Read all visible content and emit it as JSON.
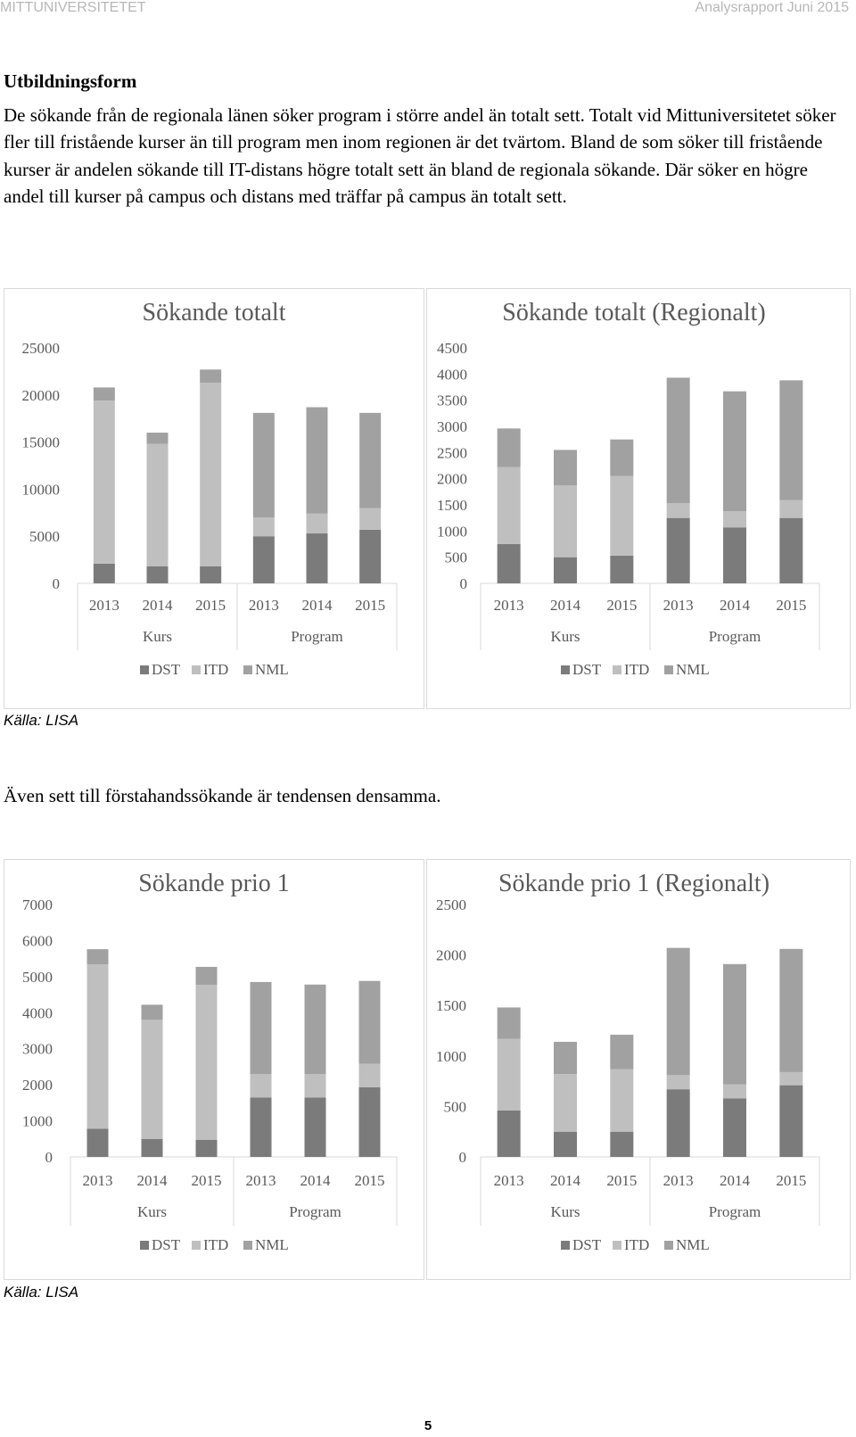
{
  "header": {
    "left": "MITTUNIVERSITETET",
    "right": "Analysrapport Juni 2015"
  },
  "section_heading": "Utbildningsform",
  "paragraph": "De sökande från de regionala länen söker program i större andel än totalt sett. Totalt vid Mittuniversitetet söker fler till fristående kurser än till program men inom regionen är det tvärtom. Bland de som söker till fristående kurser är andelen sökande till IT-distans högre totalt sett än bland de regionala sökande. Där söker en högre andel till kurser på campus och distans med träffar på campus än totalt sett.",
  "paragraph2": "Även sett till förstahandssökande är tendensen densamma.",
  "source1": "Källa: LISA",
  "source2": "Källa: LISA",
  "page_number": "5",
  "colors": {
    "DST": "#7b7b7b",
    "ITD": "#bfbfbf",
    "NML": "#a1a1a1",
    "grid": "#d9d9d9",
    "axis_text": "#595959"
  },
  "chart_data": [
    {
      "type": "bar",
      "stacked": true,
      "title": "Sökande totalt",
      "categories": [
        "2013",
        "2014",
        "2015",
        "2013",
        "2014",
        "2015"
      ],
      "groups": [
        {
          "label": "Kurs",
          "count": 3
        },
        {
          "label": "Program",
          "count": 3
        }
      ],
      "series": [
        {
          "name": "DST",
          "values": [
            2100,
            1800,
            1800,
            5000,
            5300,
            5700
          ]
        },
        {
          "name": "ITD",
          "values": [
            17300,
            13000,
            19500,
            2000,
            2100,
            2300
          ]
        },
        {
          "name": "NML",
          "values": [
            1400,
            1200,
            1400,
            11100,
            11300,
            10100
          ]
        }
      ],
      "yticks": [
        0,
        5000,
        10000,
        15000,
        20000,
        25000
      ],
      "ylim": [
        0,
        25000
      ],
      "grid": false,
      "legend": "bottom"
    },
    {
      "type": "bar",
      "stacked": true,
      "title": "Sökande totalt (Regionalt)",
      "categories": [
        "2013",
        "2014",
        "2015",
        "2013",
        "2014",
        "2015"
      ],
      "groups": [
        {
          "label": "Kurs",
          "count": 3
        },
        {
          "label": "Program",
          "count": 3
        }
      ],
      "series": [
        {
          "name": "DST",
          "values": [
            750,
            500,
            530,
            1250,
            1070,
            1250
          ]
        },
        {
          "name": "ITD",
          "values": [
            1470,
            1370,
            1520,
            280,
            310,
            340
          ]
        },
        {
          "name": "NML",
          "values": [
            740,
            680,
            700,
            2400,
            2290,
            2290
          ]
        }
      ],
      "yticks": [
        0,
        500,
        1000,
        1500,
        2000,
        2500,
        3000,
        3500,
        4000,
        4500
      ],
      "ylim": [
        0,
        4500
      ],
      "grid": false,
      "legend": "bottom"
    },
    {
      "type": "bar",
      "stacked": true,
      "title": "Sökande prio 1",
      "categories": [
        "2013",
        "2014",
        "2015",
        "2013",
        "2014",
        "2015"
      ],
      "groups": [
        {
          "label": "Kurs",
          "count": 3
        },
        {
          "label": "Program",
          "count": 3
        }
      ],
      "series": [
        {
          "name": "DST",
          "values": [
            780,
            500,
            470,
            1650,
            1650,
            1930
          ]
        },
        {
          "name": "ITD",
          "values": [
            4560,
            3300,
            4300,
            650,
            650,
            650
          ]
        },
        {
          "name": "NML",
          "values": [
            420,
            420,
            500,
            2550,
            2480,
            2300
          ]
        }
      ],
      "yticks": [
        0,
        1000,
        2000,
        3000,
        4000,
        5000,
        6000,
        7000
      ],
      "ylim": [
        0,
        7000
      ],
      "grid": false,
      "legend": "bottom"
    },
    {
      "type": "bar",
      "stacked": true,
      "title": "Sökande prio 1 (Regionalt)",
      "categories": [
        "2013",
        "2014",
        "2015",
        "2013",
        "2014",
        "2015"
      ],
      "groups": [
        {
          "label": "Kurs",
          "count": 3
        },
        {
          "label": "Program",
          "count": 3
        }
      ],
      "series": [
        {
          "name": "DST",
          "values": [
            460,
            250,
            250,
            670,
            580,
            710
          ]
        },
        {
          "name": "ITD",
          "values": [
            710,
            570,
            620,
            140,
            140,
            130
          ]
        },
        {
          "name": "NML",
          "values": [
            310,
            320,
            340,
            1260,
            1190,
            1220
          ]
        }
      ],
      "yticks": [
        0,
        500,
        1000,
        1500,
        2000,
        2500
      ],
      "ylim": [
        0,
        2500
      ],
      "grid": false,
      "legend": "bottom"
    }
  ]
}
